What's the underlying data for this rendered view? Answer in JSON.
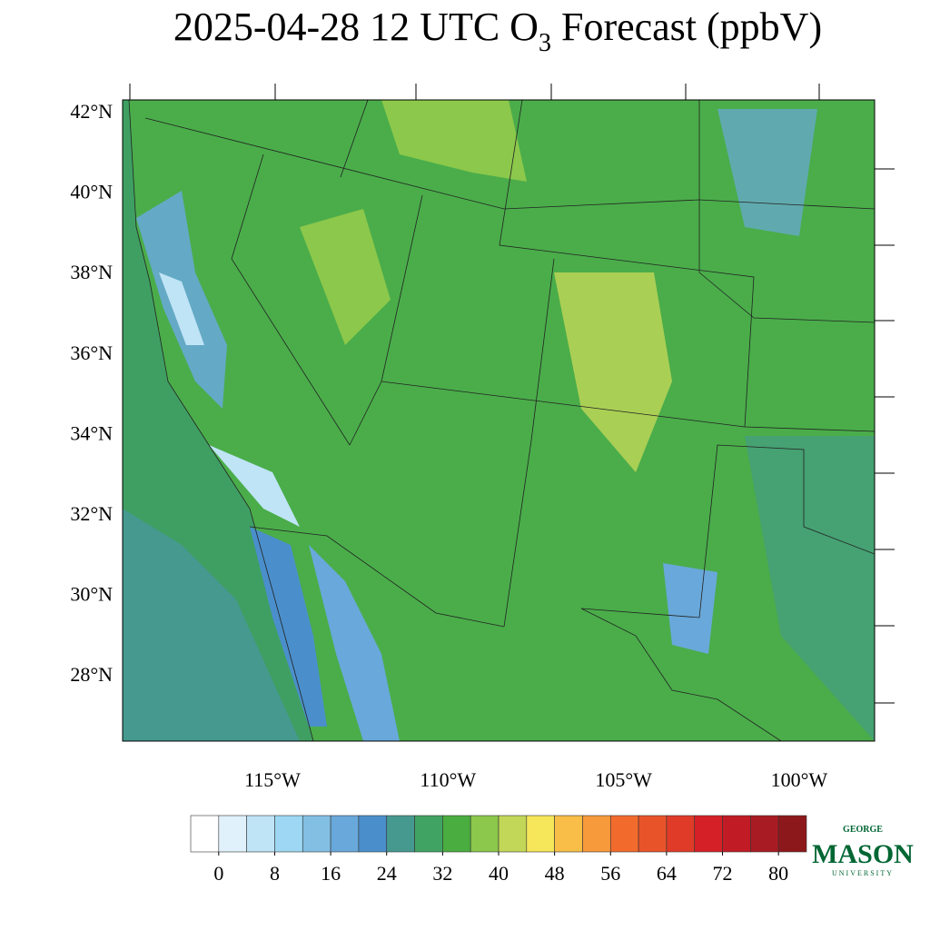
{
  "title": {
    "main": "2025-04-28 12 UTC O",
    "subscript": "3",
    "rest": " Forecast (ppbV)"
  },
  "map": {
    "lat_labels": [
      "42°N",
      "40°N",
      "38°N",
      "36°N",
      "34°N",
      "32°N",
      "30°N",
      "28°N"
    ],
    "lon_labels": [
      "115°W",
      "110°W",
      "105°W",
      "100°W"
    ]
  },
  "colorbar": {
    "colors": [
      "#ffffff",
      "#e1f1fb",
      "#bfe4f6",
      "#9dd7f3",
      "#83bfe3",
      "#69a8da",
      "#4a8fcb",
      "#45998f",
      "#40a363",
      "#4aad3f",
      "#8cc84b",
      "#c2d757",
      "#f6e65a",
      "#f8be48",
      "#f79a3b",
      "#f26b2d",
      "#e9532a",
      "#df3b28",
      "#d52027",
      "#c11c25",
      "#a81b22",
      "#8d181c"
    ],
    "ticks": [
      0,
      8,
      16,
      24,
      32,
      40,
      48,
      56,
      64,
      72,
      80
    ]
  },
  "logo": {
    "top": "GEORGE",
    "name": "MASON",
    "bottom": "UNIVERSITY"
  }
}
